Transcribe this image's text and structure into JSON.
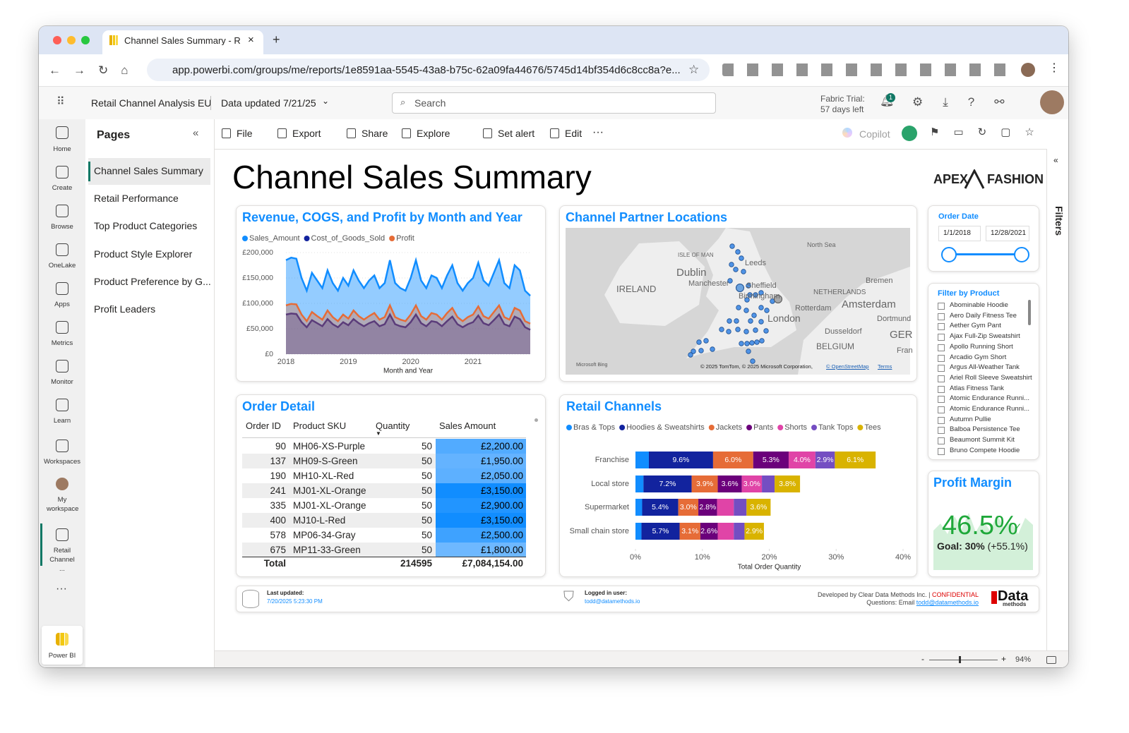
{
  "browser": {
    "tab_title": "Channel Sales Summary - Ret",
    "url": "app.powerbi.com/groups/me/reports/1e8591aa-5545-43a8-b75c-62a09fa44676/5745d14bf354d6c8cc8a?e..."
  },
  "header": {
    "workspace": "Retail Channel Analysis EU",
    "data_updated": "Data updated 7/21/25",
    "search": "Search",
    "trial": "Fabric Trial:",
    "trial_days": "57 days left",
    "notification_count": "1"
  },
  "nav": [
    "Home",
    "Create",
    "Browse",
    "OneLake",
    "Apps",
    "Metrics",
    "Monitor",
    "Learn",
    "Workspaces",
    "My workspace",
    "Retail Channel ...",
    "Power BI"
  ],
  "pages": {
    "title": "Pages",
    "items": [
      "Channel Sales Summary",
      "Retail Performance",
      "Top Product Categories",
      "Product Style Explorer",
      "Product Preference by G...",
      "Profit Leaders"
    ]
  },
  "toolbar": {
    "items": [
      "File",
      "Export",
      "Share",
      "Explore",
      "Set alert",
      "Edit"
    ],
    "copilot": "Copilot"
  },
  "report": {
    "title": "Channel Sales Summary",
    "logo_left": "APEX",
    "logo_right": "FASHION"
  },
  "chart_data": [
    {
      "type": "area",
      "title": "Revenue, COGS, and Profit by Month and Year",
      "x_label": "Month and Year",
      "categories": [
        "2018",
        null,
        null,
        null,
        null,
        null,
        null,
        null,
        null,
        null,
        null,
        null,
        "2019",
        null,
        null,
        null,
        null,
        null,
        null,
        null,
        null,
        null,
        null,
        null,
        "2020",
        null,
        null,
        null,
        null,
        null,
        null,
        null,
        null,
        null,
        null,
        null,
        "2021",
        null,
        null,
        null,
        null,
        null,
        null,
        null,
        null,
        null,
        null,
        null
      ],
      "series": [
        {
          "name": "Sales_Amount",
          "color": "#118DFF",
          "values": [
            185000,
            190000,
            188000,
            150000,
            125000,
            160000,
            145000,
            130000,
            165000,
            140000,
            125000,
            150000,
            135000,
            165000,
            145000,
            130000,
            145000,
            155000,
            130000,
            140000,
            185000,
            140000,
            130000,
            125000,
            150000,
            185000,
            145000,
            130000,
            155000,
            150000,
            130000,
            155000,
            175000,
            140000,
            125000,
            140000,
            150000,
            180000,
            145000,
            135000,
            160000,
            185000,
            140000,
            130000,
            175000,
            165000,
            125000,
            115000
          ]
        },
        {
          "name": "Cost_of_Goods_Sold",
          "color": "#12239E",
          "values": [
            78000,
            80000,
            79000,
            63000,
            53000,
            67000,
            61000,
            55000,
            69000,
            59000,
            53000,
            63000,
            57000,
            69000,
            61000,
            55000,
            61000,
            65000,
            55000,
            59000,
            78000,
            59000,
            55000,
            53000,
            63000,
            78000,
            61000,
            55000,
            65000,
            63000,
            55000,
            65000,
            74000,
            59000,
            53000,
            59000,
            63000,
            76000,
            61000,
            57000,
            67000,
            78000,
            59000,
            55000,
            74000,
            69000,
            53000,
            48000
          ]
        },
        {
          "name": "Profit",
          "color": "#E66C37",
          "values": [
            96000,
            99000,
            98000,
            78000,
            65000,
            83000,
            75000,
            68000,
            86000,
            73000,
            65000,
            78000,
            70000,
            86000,
            75000,
            68000,
            75000,
            81000,
            68000,
            73000,
            96000,
            73000,
            68000,
            65000,
            78000,
            96000,
            75000,
            68000,
            81000,
            78000,
            68000,
            81000,
            91000,
            73000,
            65000,
            73000,
            78000,
            94000,
            75000,
            70000,
            83000,
            96000,
            73000,
            68000,
            91000,
            86000,
            65000,
            60000
          ]
        }
      ],
      "ylim": [
        0,
        200000
      ],
      "yticks": [
        {
          "value": 0,
          "label": "£0"
        },
        {
          "value": 50000,
          "label": "£50,000"
        },
        {
          "value": 100000,
          "label": "£100,000"
        },
        {
          "value": 150000,
          "label": "£150,000"
        },
        {
          "value": 200000,
          "label": "£200,000"
        }
      ],
      "grid": true
    },
    {
      "type": "bar",
      "orientation": "horizontal",
      "stacked": true,
      "title": "Retail Channels",
      "x_label": "Total Order Quantity",
      "categories": [
        "Franchise",
        "Local store",
        "Supermarket",
        "Small chain store"
      ],
      "series": [
        {
          "name": "Bras & Tops",
          "color": "#118DFF",
          "values": [
            2.0,
            1.2,
            1.0,
            0.9
          ],
          "value_labels": [
            null,
            null,
            null,
            null
          ]
        },
        {
          "name": "Hoodies & Sweatshirts",
          "color": "#12239E",
          "values": [
            9.6,
            7.2,
            5.4,
            5.7
          ],
          "value_labels": [
            "9.6%",
            "7.2%",
            "5.4%",
            "5.7%"
          ]
        },
        {
          "name": "Jackets",
          "color": "#E66C37",
          "values": [
            6.0,
            3.9,
            3.0,
            3.1
          ],
          "value_labels": [
            "6.0%",
            "3.9%",
            "3.0%",
            "3.1%"
          ]
        },
        {
          "name": "Pants",
          "color": "#6B007B",
          "values": [
            5.3,
            3.6,
            2.8,
            2.6
          ],
          "value_labels": [
            "5.3%",
            "3.6%",
            "2.8%",
            "2.6%"
          ]
        },
        {
          "name": "Shorts",
          "color": "#E044A7",
          "values": [
            4.0,
            3.0,
            2.5,
            2.4
          ],
          "value_labels": [
            "4.0%",
            "3.0%",
            null,
            null
          ]
        },
        {
          "name": "Tank Tops",
          "color": "#744EC2",
          "values": [
            2.9,
            1.9,
            1.9,
            1.6
          ],
          "value_labels": [
            "2.9%",
            null,
            null,
            null
          ]
        },
        {
          "name": "Tees",
          "color": "#D9B300",
          "values": [
            6.1,
            3.8,
            3.6,
            2.9
          ],
          "value_labels": [
            "6.1%",
            "3.8%",
            "3.6%",
            "2.9%"
          ]
        }
      ],
      "xlim": [
        0,
        40
      ],
      "xticks": [
        {
          "value": 0,
          "label": "0%"
        },
        {
          "value": 10,
          "label": "10%"
        },
        {
          "value": 20,
          "label": "20%"
        },
        {
          "value": 30,
          "label": "30%"
        },
        {
          "value": 40,
          "label": "40%"
        }
      ]
    }
  ],
  "map": {
    "title": "Channel Partner Locations",
    "labels": [
      "North Sea",
      "ISLE OF MAN",
      "Dublin",
      "IRELAND",
      "Leeds",
      "Manchester",
      "Sheffield",
      "Birmingham",
      "London",
      "NETHERLANDS",
      "Amsterdam",
      "Rotterdam",
      "Bremen",
      "Dortmund",
      "Dusseldorf",
      "BELGIUM",
      "GER",
      "Fran"
    ],
    "provider": "Microsoft Bing",
    "attribution": "© 2025 TomTom, © 2025 Microsoft Corporation,",
    "osm": "© OpenStreetMap",
    "terms": "Terms"
  },
  "order_detail": {
    "title": "Order Detail",
    "columns": [
      "Order ID",
      "Product SKU",
      "Quantity",
      "Sales Amount"
    ],
    "rows": [
      [
        "90",
        "MH06-XS-Purple",
        "50",
        "£2,200.00"
      ],
      [
        "137",
        "MH09-S-Green",
        "50",
        "£1,950.00"
      ],
      [
        "190",
        "MH10-XL-Red",
        "50",
        "£2,050.00"
      ],
      [
        "241",
        "MJ01-XL-Orange",
        "50",
        "£3,150.00"
      ],
      [
        "335",
        "MJ01-XL-Orange",
        "50",
        "£2,900.00"
      ],
      [
        "400",
        "MJ10-L-Red",
        "50",
        "£3,150.00"
      ],
      [
        "578",
        "MP06-34-Gray",
        "50",
        "£2,500.00"
      ],
      [
        "675",
        "MP11-33-Green",
        "50",
        "£1,800.00"
      ]
    ],
    "total": {
      "label": "Total",
      "quantity": "214595",
      "sales_amount": "£7,084,154.00"
    }
  },
  "date_slicer": {
    "title": "Order Date",
    "start": "1/1/2018",
    "end": "12/28/2021"
  },
  "product_filter": {
    "title": "Filter by Product",
    "items": [
      "Abominable Hoodie",
      "Aero Daily Fitness Tee",
      "Aether Gym Pant",
      "Ajax Full-Zip Sweatshirt",
      "Apollo Running Short",
      "Arcadio Gym Short",
      "Argus All-Weather Tank",
      "Ariel Roll Sleeve Sweatshirt",
      "Atlas Fitness Tank",
      "Atomic Endurance Runni...",
      "Atomic Endurance Runni...",
      "Autumn Pullie",
      "Balboa Persistence Tee",
      "Beaumont Summit Kit",
      "Bruno Compete Hoodie"
    ]
  },
  "profit_margin": {
    "title": "Profit Margin",
    "value": "46.5%",
    "goal": "Goal: 30%",
    "change": "(+55.1%)"
  },
  "footer": {
    "last_updated_label": "Last updated:",
    "last_updated": "7/20/2025 5:23:30 PM",
    "user_label": "Logged in user:",
    "user": "todd@datamethods.io",
    "developer": "Developed by Clear Data Methods Inc. |",
    "confidential": "CONFIDENTIAL",
    "questions": "Questions: Email",
    "email": "todd@datamethods.io",
    "brand": "Data",
    "brand_sub": "methods"
  },
  "filters_pane": "Filters",
  "zoom": "94%"
}
